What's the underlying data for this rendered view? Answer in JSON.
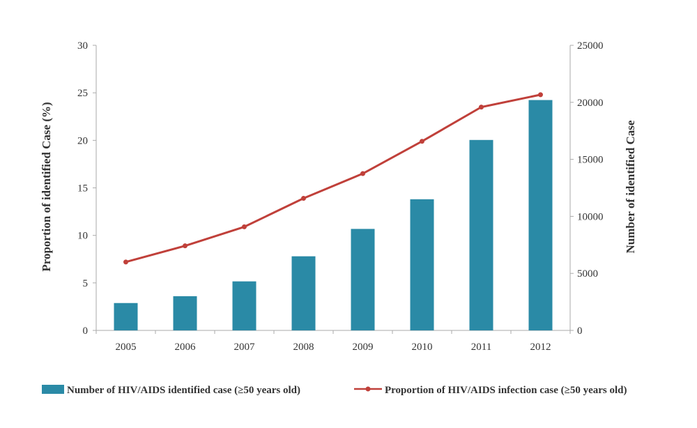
{
  "chart_data": {
    "type": "bar+line",
    "categories": [
      "2005",
      "2006",
      "2007",
      "2008",
      "2009",
      "2010",
      "2011",
      "2012"
    ],
    "series": [
      {
        "name": "Number of HIV/AIDS identified case (≥50 years old)",
        "kind": "bar",
        "axis": "right",
        "color": "#2a8aa6",
        "values": [
          2400,
          3000,
          4300,
          6500,
          8900,
          11500,
          16700,
          20200
        ]
      },
      {
        "name": "Proportion of HIV/AIDS infection case (≥50 years old)",
        "kind": "line",
        "axis": "left",
        "color": "#c0403a",
        "values": [
          7.2,
          8.9,
          10.9,
          13.9,
          16.5,
          19.9,
          23.5,
          24.8
        ]
      }
    ],
    "y_left": {
      "label": "Proportion of identified Case (%)",
      "lim": [
        0,
        30
      ],
      "ticks": [
        "0",
        "5",
        "10",
        "15",
        "20",
        "25",
        "30"
      ]
    },
    "y_right": {
      "label": "Number of identified Case",
      "lim": [
        0,
        25000
      ],
      "ticks": [
        "0",
        "5000",
        "10000",
        "15000",
        "20000",
        "25000"
      ]
    },
    "grid": false,
    "legend_position": "bottom"
  }
}
